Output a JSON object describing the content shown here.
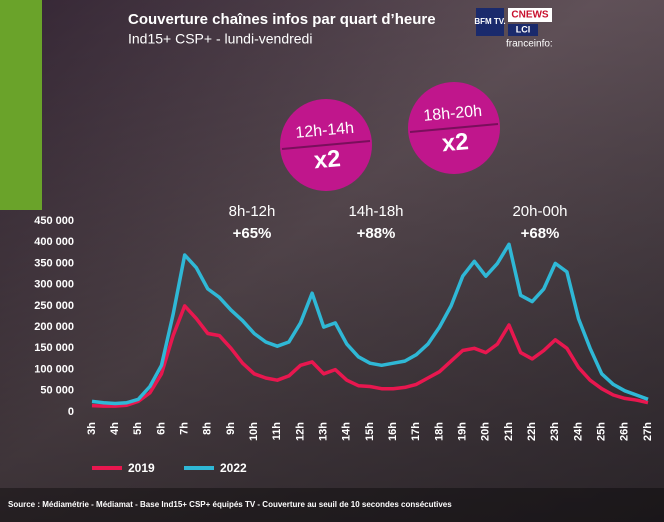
{
  "chart_data": {
    "type": "line",
    "title": "Couverture chaînes infos par quart d’heure",
    "subtitle": "Ind15+ CSP+ - lundi-vendredi",
    "categories": [
      "3h",
      null,
      "4h",
      null,
      "5h",
      null,
      "6h",
      null,
      "7h",
      null,
      "8h",
      null,
      "9h",
      null,
      "10h",
      null,
      "11h",
      null,
      "12h",
      null,
      "13h",
      null,
      "14h",
      null,
      "15h",
      null,
      "16h",
      null,
      "17h",
      null,
      "18h",
      null,
      "19h",
      null,
      "20h",
      null,
      "21h",
      null,
      "22h",
      null,
      "23h",
      null,
      "24h",
      null,
      "25h",
      null,
      "26h",
      null,
      "27h"
    ],
    "series": [
      {
        "name": "2019",
        "color": "#e8174f",
        "values": [
          15000,
          14000,
          14000,
          16000,
          25000,
          45000,
          90000,
          180000,
          250000,
          220000,
          185000,
          180000,
          150000,
          115000,
          90000,
          80000,
          75000,
          85000,
          110000,
          118000,
          90000,
          100000,
          75000,
          62000,
          60000,
          55000,
          55000,
          58000,
          65000,
          80000,
          95000,
          120000,
          145000,
          150000,
          140000,
          160000,
          205000,
          140000,
          125000,
          145000,
          170000,
          150000,
          105000,
          75000,
          55000,
          40000,
          32000,
          28000,
          22000
        ]
      },
      {
        "name": "2022",
        "color": "#2fb8d6",
        "values": [
          25000,
          22000,
          20000,
          22000,
          30000,
          60000,
          110000,
          230000,
          370000,
          340000,
          290000,
          270000,
          240000,
          215000,
          185000,
          165000,
          155000,
          165000,
          210000,
          280000,
          200000,
          210000,
          160000,
          130000,
          115000,
          110000,
          115000,
          120000,
          135000,
          160000,
          200000,
          250000,
          320000,
          355000,
          320000,
          350000,
          395000,
          275000,
          260000,
          290000,
          350000,
          330000,
          220000,
          150000,
          90000,
          65000,
          50000,
          40000,
          30000
        ]
      }
    ],
    "ylim": [
      0,
      450000
    ],
    "yticks": [
      0,
      {
        "value": 50000,
        "label": "50 000"
      },
      {
        "value": 100000,
        "label": "100 000"
      },
      {
        "value": 150000,
        "label": "150 000"
      },
      {
        "value": 200000,
        "label": "200 000"
      },
      {
        "value": 250000,
        "label": "250 000"
      },
      {
        "value": 300000,
        "label": "300 000"
      },
      {
        "value": 350000,
        "label": "350 000"
      },
      {
        "value": 400000,
        "label": "400 000"
      },
      {
        "value": 450000,
        "label": "450 000"
      }
    ],
    "annotations": [
      {
        "period": "8h-12h",
        "change": "+65%"
      },
      {
        "period": "14h-18h",
        "change": "+88%"
      },
      {
        "period": "20h-00h",
        "change": "+68%"
      }
    ],
    "bubbles": [
      {
        "period": "12h-14h",
        "factor": "x2"
      },
      {
        "period": "18h-20h",
        "factor": "x2"
      }
    ],
    "logos": [
      "BFM TV.",
      "CNEWS",
      "LCI",
      "franceinfo:"
    ],
    "source": "Source : Médiamétrie - Médiamat - Base Ind15+ CSP+ équipés TV - Couverture au seuil de 10 secondes consécutives"
  }
}
